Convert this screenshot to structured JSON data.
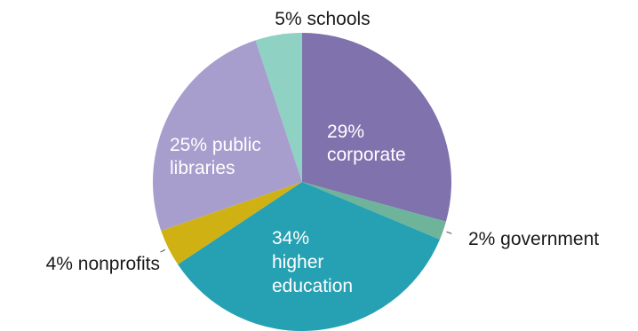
{
  "chart_data": {
    "type": "pie",
    "slices": [
      {
        "label": "corporate",
        "value": 29,
        "text_lines": [
          "29%",
          "corporate"
        ],
        "color": "#7f72ad",
        "text_color": "#ffffff"
      },
      {
        "label": "government",
        "value": 2,
        "text_lines": [
          "2% government"
        ],
        "color": "#6db49b",
        "text_color": "#1a1a1a"
      },
      {
        "label": "higher education",
        "value": 34,
        "text_lines": [
          "34%",
          "higher",
          "education"
        ],
        "color": "#26a0b3",
        "text_color": "#ffffff"
      },
      {
        "label": "nonprofits",
        "value": 4,
        "text_lines": [
          "4% nonprofits"
        ],
        "color": "#cfb114",
        "text_color": "#1a1a1a"
      },
      {
        "label": "public libraries",
        "value": 25,
        "text_lines": [
          "25% public",
          "libraries"
        ],
        "color": "#a79ecd",
        "text_color": "#ffffff"
      },
      {
        "label": "schools",
        "value": 5,
        "text_lines": [
          "5% schools"
        ],
        "color": "#8fd1c2",
        "text_color": "#1a1a1a"
      }
    ]
  }
}
